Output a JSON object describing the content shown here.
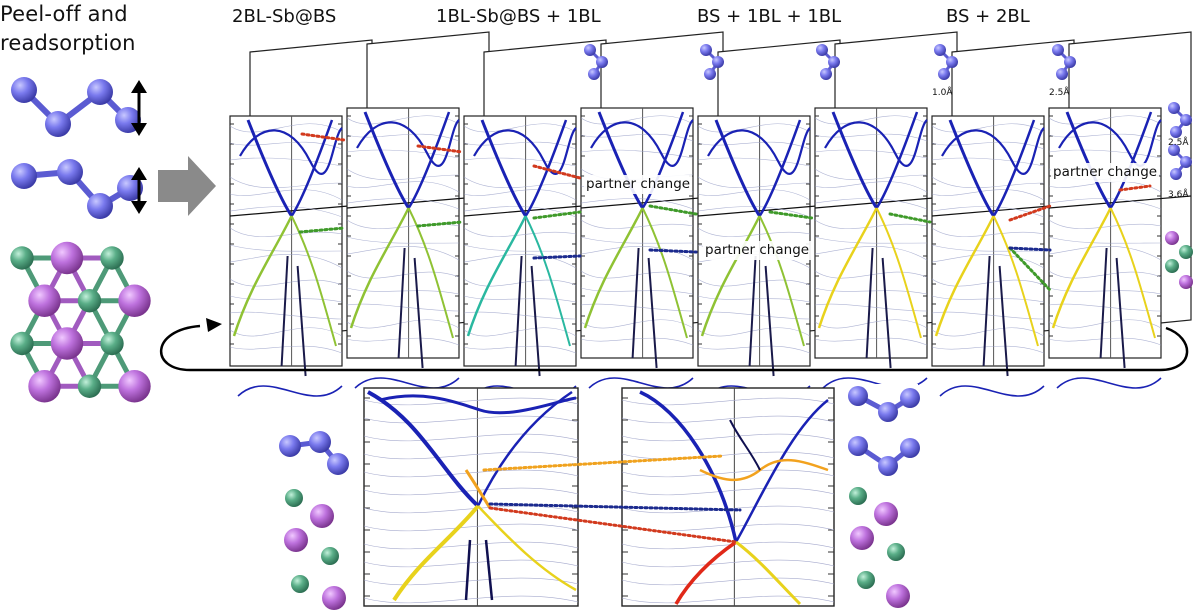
{
  "intro": {
    "line1": "Peel-off and",
    "line2": "readsorption"
  },
  "stages": [
    {
      "title": "2BL-Sb@BS"
    },
    {
      "title": "1BL-Sb@BS + 1BL"
    },
    {
      "title": "BS + 1BL + 1BL"
    },
    {
      "title": "BS + 2BL"
    }
  ],
  "annotations": {
    "partner_change_1": "partner change",
    "partner_change_2": "partner change",
    "partner_change_3": "partner change"
  },
  "distance_labels": {
    "d1": "1.0Å",
    "d2": "2.5Å",
    "d3": "2.5Å",
    "d4": "3.6Å"
  },
  "colors": {
    "sb_atom": "#7474e8",
    "bi_atom": "#b86ed6",
    "se_atom": "#55a884",
    "band_blue": "#1a22b4",
    "band_green": "#8fc234",
    "band_yellow": "#e8d21c",
    "band_orange": "#f2a21e",
    "band_red": "#e02818",
    "link_red": "#d23a1e",
    "link_green": "#3f9a2a",
    "link_navy": "#1b2a8e",
    "link_orange": "#f0a21e"
  }
}
